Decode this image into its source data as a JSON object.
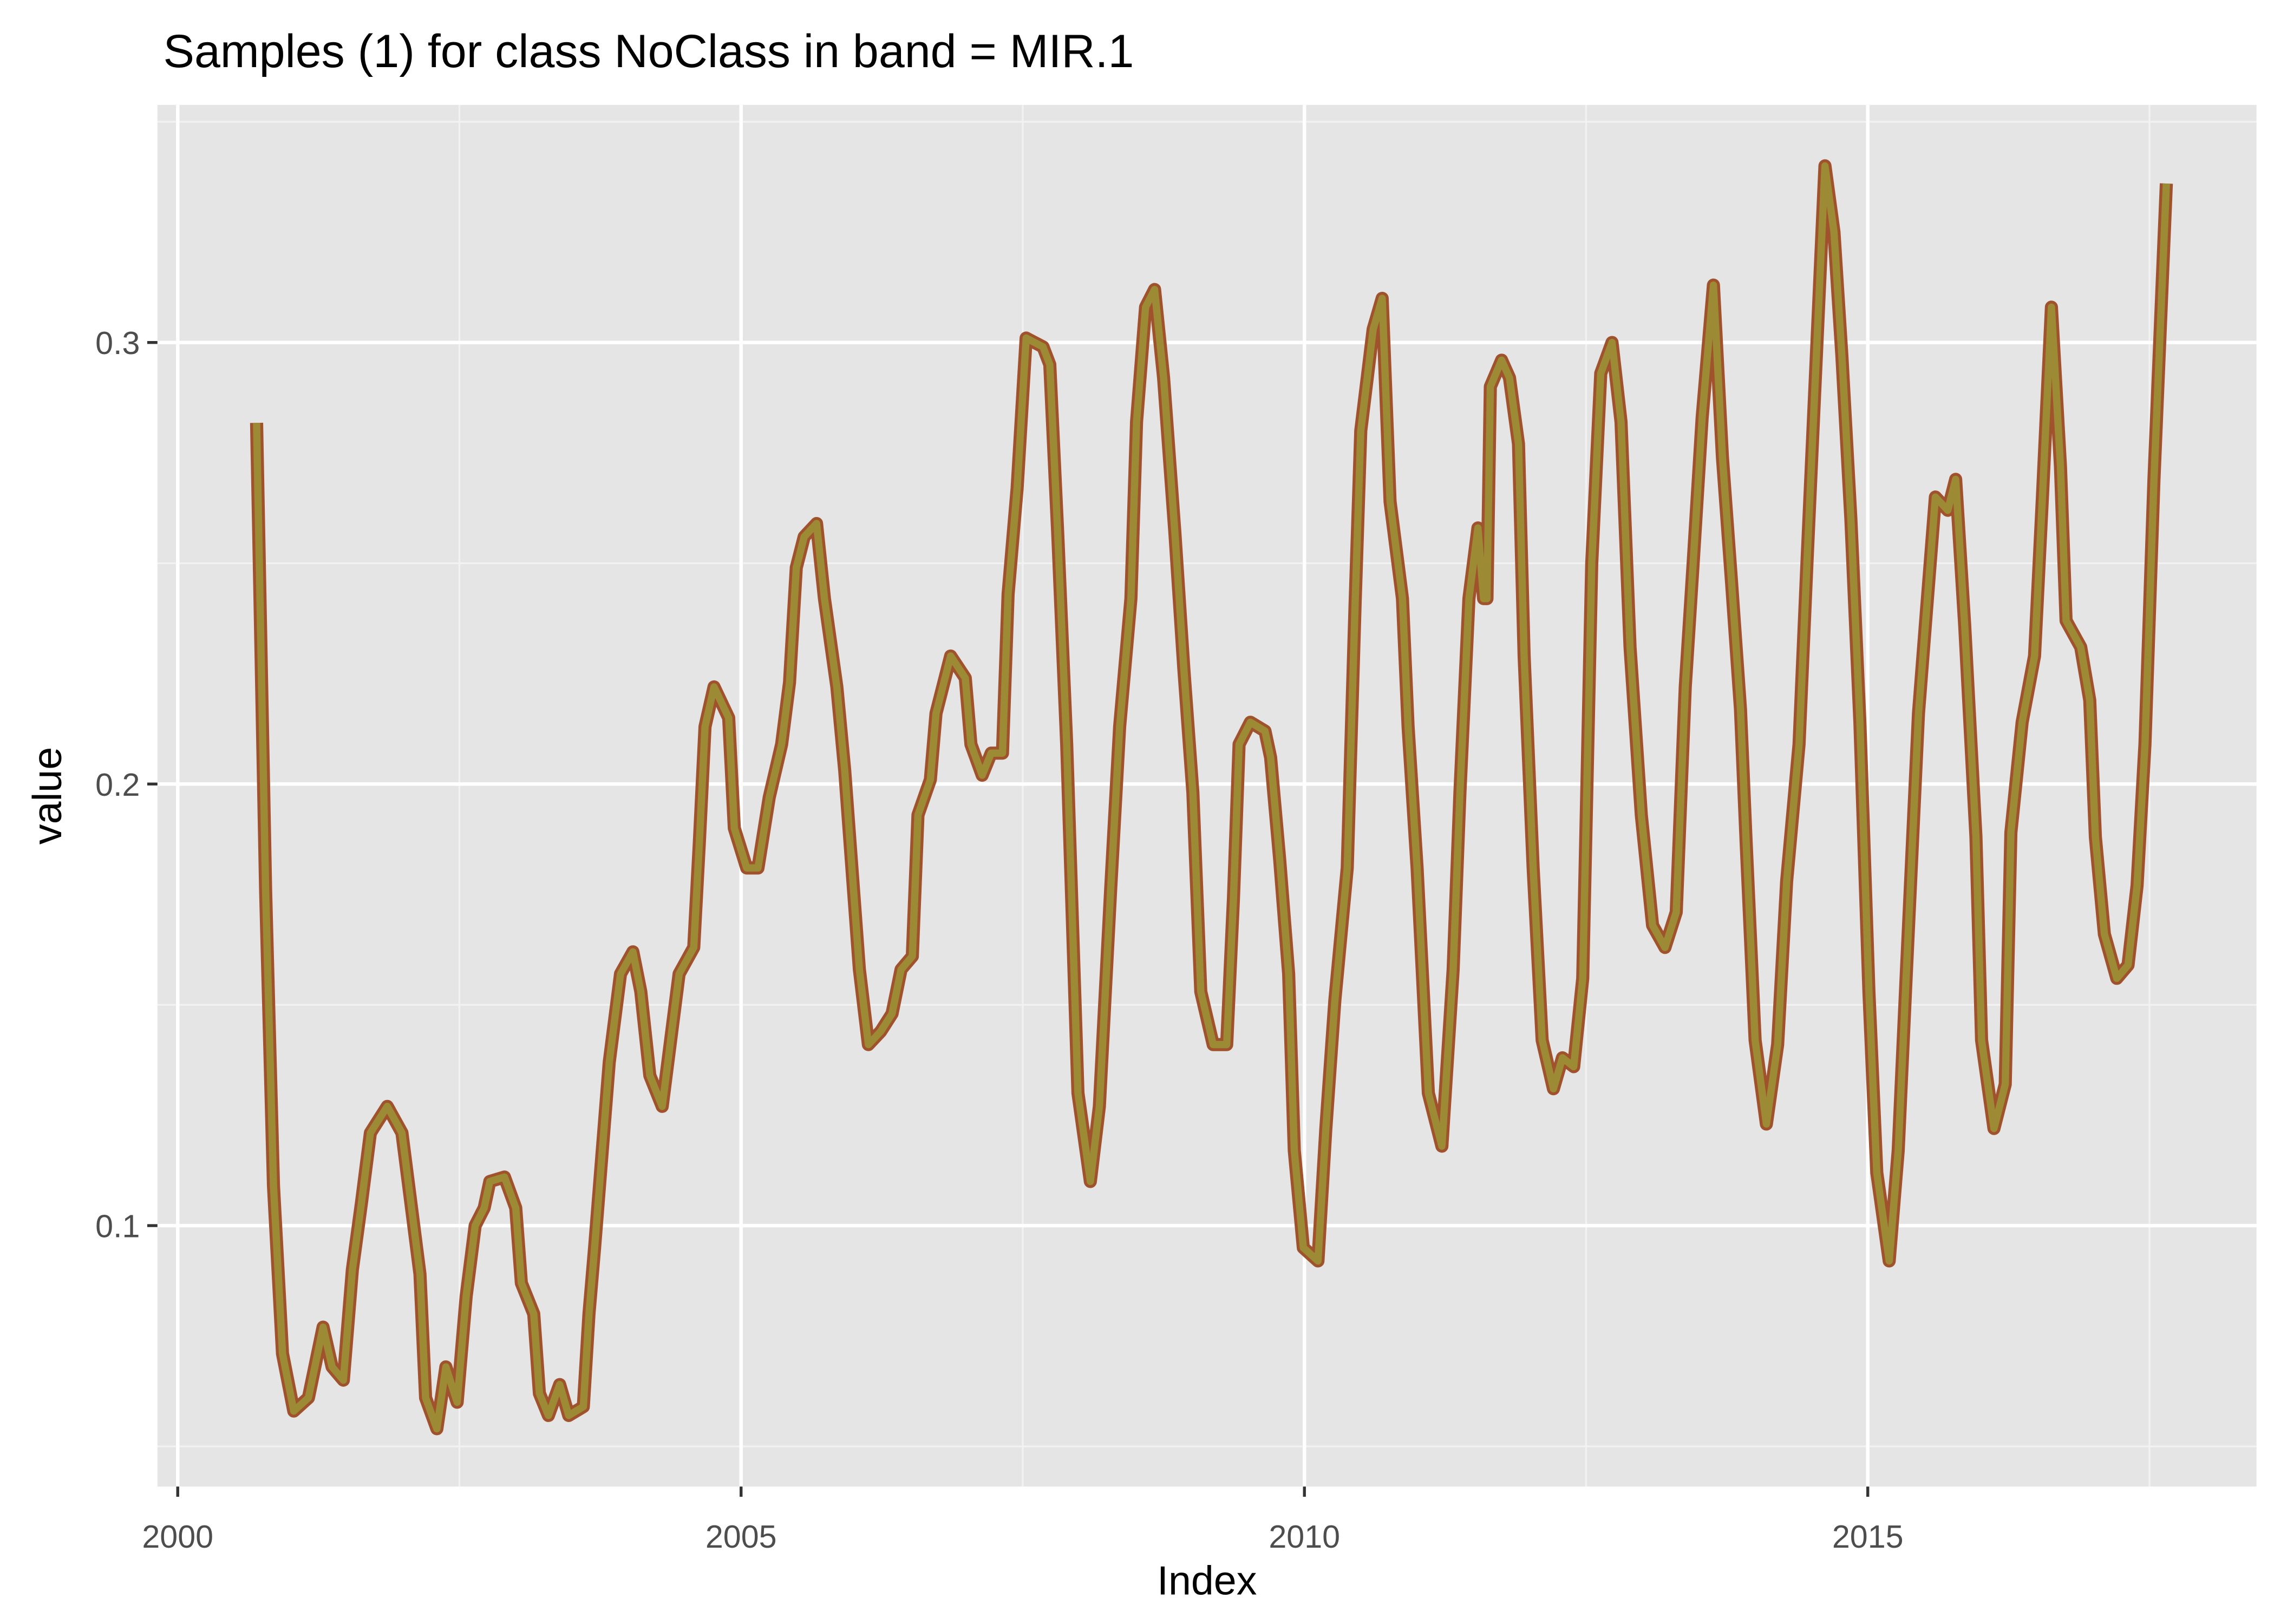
{
  "chart_data": {
    "type": "line",
    "title": "Samples (1) for class NoClass in band = MIR.1",
    "x_label": "Index",
    "y_label": "value",
    "xlim": [
      1999.82,
      2018.45
    ],
    "xticks": [
      2000,
      2005,
      2010,
      2015
    ],
    "ylim": [
      0.0409,
      0.3538
    ],
    "yticks": [
      0.1,
      0.2,
      0.3
    ],
    "grid": true,
    "series": [
      {
        "color": "#9c8a34",
        "outline_color": "#a0522d",
        "x": [
          2000.7,
          2000.78,
          2000.85,
          2000.93,
          2001.03,
          2001.16,
          2001.29,
          2001.37,
          2001.47,
          2001.55,
          2001.63,
          2001.71,
          2001.86,
          2001.99,
          2002.15,
          2002.2,
          2002.3,
          2002.38,
          2002.48,
          2002.56,
          2002.64,
          2002.72,
          2002.77,
          2002.9,
          2003.0,
          2003.05,
          2003.16,
          2003.21,
          2003.29,
          2003.39,
          2003.47,
          2003.6,
          2003.65,
          2003.7,
          2003.83,
          2003.93,
          2004.04,
          2004.11,
          2004.19,
          2004.3,
          2004.45,
          2004.58,
          2004.63,
          2004.68,
          2004.76,
          2004.89,
          2004.94,
          2005.05,
          2005.15,
          2005.25,
          2005.36,
          2005.43,
          2005.49,
          2005.56,
          2005.67,
          2005.74,
          2005.85,
          2005.92,
          2006.05,
          2006.13,
          2006.24,
          2006.34,
          2006.42,
          2006.52,
          2006.57,
          2006.68,
          2006.73,
          2006.86,
          2006.99,
          2007.04,
          2007.14,
          2007.22,
          2007.32,
          2007.37,
          2007.45,
          2007.53,
          2007.68,
          2007.74,
          2007.81,
          2007.89,
          2007.99,
          2008.1,
          2008.18,
          2008.28,
          2008.36,
          2008.46,
          2008.51,
          2008.59,
          2008.67,
          2008.75,
          2008.85,
          2008.93,
          2009.01,
          2009.08,
          2009.19,
          2009.31,
          2009.37,
          2009.42,
          2009.52,
          2009.65,
          2009.7,
          2009.78,
          2009.86,
          2009.91,
          2009.99,
          2010.12,
          2010.19,
          2010.27,
          2010.38,
          2010.45,
          2010.5,
          2010.61,
          2010.69,
          2010.76,
          2010.87,
          2010.92,
          2011.0,
          2011.1,
          2011.22,
          2011.32,
          2011.38,
          2011.46,
          2011.54,
          2011.59,
          2011.62,
          2011.65,
          2011.75,
          2011.82,
          2011.9,
          2011.95,
          2012.03,
          2012.11,
          2012.21,
          2012.29,
          2012.39,
          2012.47,
          2012.55,
          2012.63,
          2012.73,
          2012.81,
          2012.89,
          2012.99,
          2013.09,
          2013.2,
          2013.3,
          2013.38,
          2013.45,
          2013.53,
          2013.63,
          2013.71,
          2013.79,
          2013.87,
          2013.92,
          2014.0,
          2014.1,
          2014.2,
          2014.28,
          2014.39,
          2014.46,
          2014.54,
          2014.62,
          2014.7,
          2014.77,
          2014.85,
          2014.93,
          2015.01,
          2015.08,
          2015.19,
          2015.27,
          2015.34,
          2015.45,
          2015.52,
          2015.6,
          2015.71,
          2015.78,
          2015.86,
          2015.96,
          2016.01,
          2016.12,
          2016.22,
          2016.27,
          2016.37,
          2016.48,
          2016.55,
          2016.63,
          2016.71,
          2016.76,
          2016.89,
          2016.97,
          2017.02,
          2017.1,
          2017.21,
          2017.31,
          2017.39,
          2017.46,
          2017.54,
          2017.65
        ],
        "values": [
          0.2818,
          0.176,
          0.109,
          0.071,
          0.058,
          0.061,
          0.077,
          0.068,
          0.065,
          0.09,
          0.105,
          0.121,
          0.127,
          0.121,
          0.089,
          0.061,
          0.054,
          0.068,
          0.06,
          0.084,
          0.1,
          0.104,
          0.11,
          0.111,
          0.104,
          0.087,
          0.08,
          0.062,
          0.057,
          0.064,
          0.057,
          0.059,
          0.08,
          0.095,
          0.137,
          0.157,
          0.162,
          0.153,
          0.134,
          0.127,
          0.157,
          0.163,
          0.187,
          0.213,
          0.222,
          0.215,
          0.19,
          0.181,
          0.181,
          0.197,
          0.209,
          0.223,
          0.249,
          0.256,
          0.259,
          0.242,
          0.222,
          0.203,
          0.158,
          0.141,
          0.144,
          0.148,
          0.158,
          0.161,
          0.193,
          0.201,
          0.216,
          0.229,
          0.224,
          0.209,
          0.202,
          0.207,
          0.207,
          0.243,
          0.267,
          0.301,
          0.299,
          0.295,
          0.257,
          0.209,
          0.13,
          0.11,
          0.127,
          0.176,
          0.213,
          0.242,
          0.282,
          0.308,
          0.312,
          0.292,
          0.257,
          0.226,
          0.198,
          0.153,
          0.141,
          0.141,
          0.174,
          0.209,
          0.214,
          0.212,
          0.206,
          0.183,
          0.157,
          0.117,
          0.095,
          0.092,
          0.122,
          0.151,
          0.181,
          0.241,
          0.28,
          0.303,
          0.31,
          0.264,
          0.242,
          0.213,
          0.181,
          0.13,
          0.118,
          0.158,
          0.198,
          0.242,
          0.258,
          0.242,
          0.242,
          0.29,
          0.296,
          0.292,
          0.277,
          0.229,
          0.181,
          0.142,
          0.131,
          0.138,
          0.136,
          0.156,
          0.25,
          0.293,
          0.3,
          0.282,
          0.231,
          0.193,
          0.168,
          0.163,
          0.171,
          0.222,
          0.25,
          0.283,
          0.313,
          0.274,
          0.246,
          0.217,
          0.187,
          0.142,
          0.123,
          0.141,
          0.178,
          0.209,
          0.25,
          0.295,
          0.34,
          0.325,
          0.297,
          0.26,
          0.214,
          0.153,
          0.112,
          0.092,
          0.117,
          0.156,
          0.216,
          0.239,
          0.265,
          0.262,
          0.269,
          0.236,
          0.188,
          0.142,
          0.122,
          0.132,
          0.189,
          0.214,
          0.229,
          0.265,
          0.308,
          0.272,
          0.237,
          0.231,
          0.219,
          0.188,
          0.166,
          0.156,
          0.159,
          0.177,
          0.209,
          0.269,
          0.336
        ]
      }
    ]
  }
}
